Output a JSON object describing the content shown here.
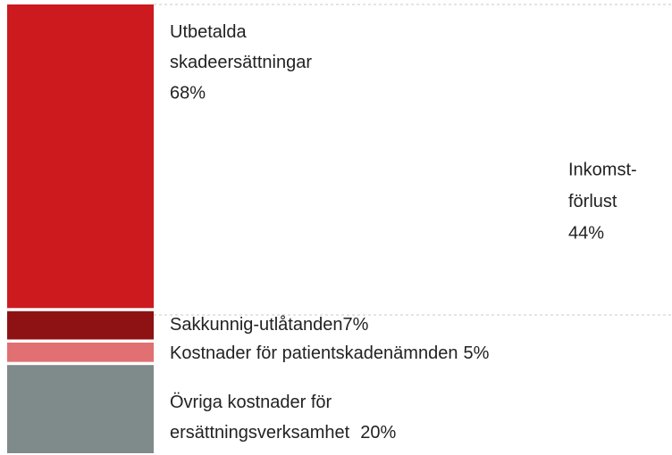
{
  "chart_data": {
    "type": "stacked_bar",
    "ylim": [
      0,
      100
    ],
    "series": [
      {
        "name": [
          "Utbetalda",
          "skadeersättningar"
        ],
        "color": "#cc1a1f",
        "values": [
          68
        ],
        "value_labels": [
          "68%"
        ]
      },
      {
        "name": [
          "Sakkunnig-utlåtanden"
        ],
        "color": "#8e1214",
        "values": [
          7
        ],
        "value_labels": [
          "7%"
        ]
      },
      {
        "name": [
          "Kostnader för patientskadenämnden"
        ],
        "color": "#e07072",
        "values": [
          5
        ],
        "value_labels": [
          "5%"
        ]
      },
      {
        "name": [
          "Övriga kostnader för",
          "ersättningsverksamhet"
        ],
        "color": "#7f8b8b",
        "values": [
          20
        ],
        "value_labels": [
          "20%"
        ]
      }
    ],
    "annotation": [
      "Inkomst-",
      "förlust",
      "44%"
    ]
  }
}
